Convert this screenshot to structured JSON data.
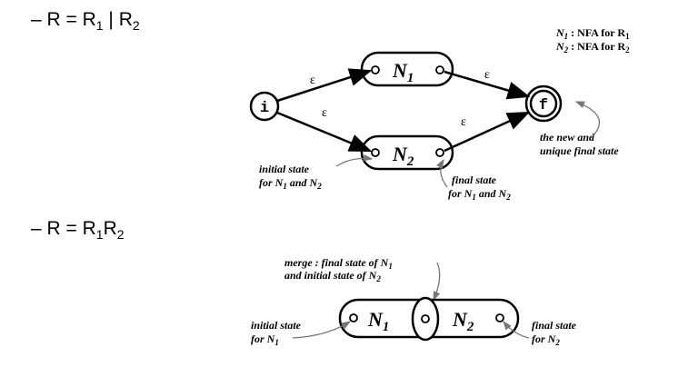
{
  "bullets": {
    "union": {
      "prefix": "– R = R",
      "s1": "1",
      "mid": " | R",
      "s2": "2"
    },
    "concat": {
      "prefix": "– R = R",
      "s1": "1",
      "mid": "R",
      "s2": "2"
    }
  },
  "union_diagram": {
    "legend": {
      "line1": {
        "sym": "N",
        "sub": "1",
        "text": " : NFA for R",
        "rsub": "1"
      },
      "line2": {
        "sym": "N",
        "sub": "2",
        "text": " : NFA for R",
        "rsub": "2"
      }
    },
    "initial_state_label": "i",
    "final_state_label": "f",
    "box1": {
      "sym": "N",
      "sub": "1"
    },
    "box2": {
      "sym": "N",
      "sub": "2"
    },
    "epsilon": "ε",
    "final_note": {
      "line1": "the new and",
      "line2": "unique final state"
    },
    "initial_note": {
      "line1": "initial state",
      "line2_prefix": "for N",
      "line2_sub1": "1",
      "line2_mid": " and N",
      "line2_sub2": "2"
    },
    "final_state_note": {
      "line1": "final state",
      "line2_prefix": "for N",
      "line2_sub1": "1",
      "line2_mid": " and N",
      "line2_sub2": "2"
    }
  },
  "concat_diagram": {
    "merge_note": {
      "line1_prefix": "merge : final state of N",
      "line1_sub": "1",
      "line2_prefix": "and initial state of N",
      "line2_sub": "2"
    },
    "box1": {
      "sym": "N",
      "sub": "1"
    },
    "box2": {
      "sym": "N",
      "sub": "2"
    },
    "initial_note": {
      "line1": "initial state",
      "line2_prefix": "for N",
      "line2_sub": "1"
    },
    "final_note": {
      "line1": "final state",
      "line2_prefix": "for N",
      "line2_sub": "2"
    }
  },
  "colors": {
    "stroke": "#000000",
    "annotation": "#777777"
  }
}
